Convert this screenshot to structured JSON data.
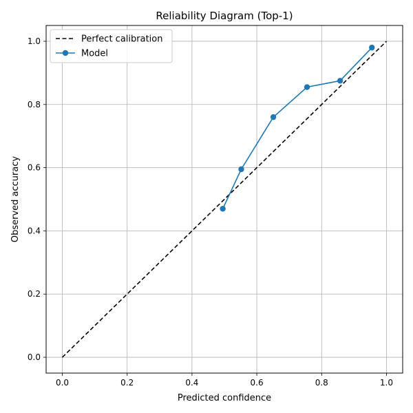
{
  "chart_data": {
    "type": "line",
    "title": "Reliability Diagram (Top-1)",
    "xlabel": "Predicted confidence",
    "ylabel": "Observed accuracy",
    "xlim": [
      -0.05,
      1.05
    ],
    "ylim": [
      -0.05,
      1.05
    ],
    "xticks": [
      "0.0",
      "0.2",
      "0.4",
      "0.6",
      "0.8",
      "1.0"
    ],
    "yticks": [
      "0.0",
      "0.2",
      "0.4",
      "0.6",
      "0.8",
      "1.0"
    ],
    "grid": true,
    "legend_position": "top-left",
    "series": [
      {
        "name": "Perfect calibration",
        "style": "dashed",
        "color": "#000000",
        "marker": "none",
        "x": [
          0.0,
          1.0
        ],
        "y": [
          0.0,
          1.0
        ]
      },
      {
        "name": "Model",
        "style": "solid",
        "color": "#1f77b4",
        "marker": "circle",
        "x": [
          0.495,
          0.552,
          0.651,
          0.755,
          0.857,
          0.955
        ],
        "y": [
          0.47,
          0.595,
          0.76,
          0.855,
          0.875,
          0.98
        ]
      }
    ]
  }
}
